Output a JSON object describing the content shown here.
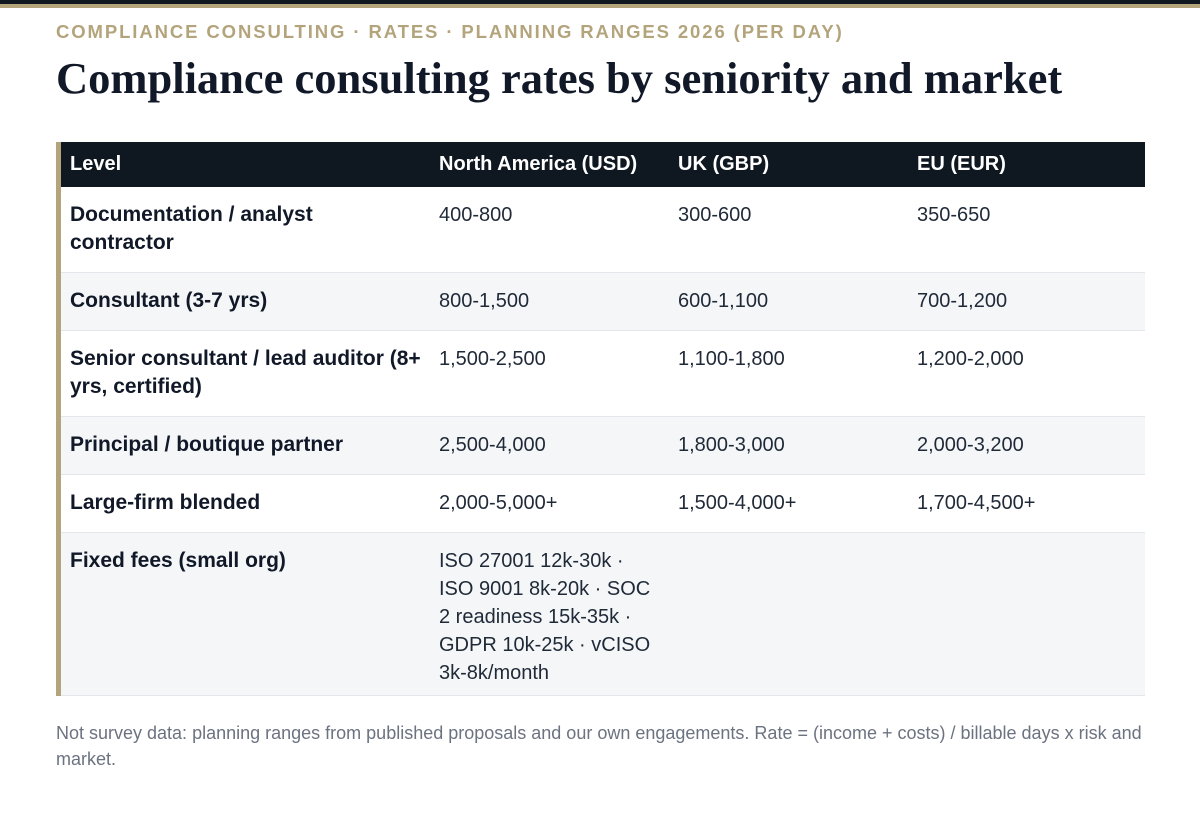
{
  "kicker": "COMPLIANCE CONSULTING · RATES · PLANNING RANGES 2026 (PER DAY)",
  "title": "Compliance consulting rates by seniority and market",
  "table": {
    "headers": [
      "Level",
      "North America (USD)",
      "UK (GBP)",
      "EU (EUR)"
    ],
    "rows": [
      {
        "level": "Documentation / analyst contractor",
        "na": "400-800",
        "uk": "300-600",
        "eu": "350-650"
      },
      {
        "level": "Consultant (3-7 yrs)",
        "na": "800-1,500",
        "uk": "600-1,100",
        "eu": "700-1,200"
      },
      {
        "level": "Senior consultant / lead auditor (8+ yrs, certified)",
        "na": "1,500-2,500",
        "uk": "1,100-1,800",
        "eu": "1,200-2,000"
      },
      {
        "level": "Principal / boutique partner",
        "na": "2,500-4,000",
        "uk": "1,800-3,000",
        "eu": "2,000-3,200"
      },
      {
        "level": "Large-firm blended",
        "na": "2,000-5,000+",
        "uk": "1,500-4,000+",
        "eu": "1,700-4,500+"
      },
      {
        "level": "Fixed fees (small org)",
        "na": "ISO 27001 12k-30k · ISO 9001 8k-20k · SOC 2 readiness 15k-35k · GDPR 10k-25k · vCISO 3k-8k/month",
        "uk": "",
        "eu": ""
      }
    ]
  },
  "footnote": "Not survey data: planning ranges from published proposals and our own engagements. Rate = (income + costs) / billable days x risk and market.",
  "colors": {
    "accent": "#b3a47c",
    "header_bg": "#0f1721",
    "stripe": "#f4f6f8",
    "footnote": "#6b7280"
  }
}
